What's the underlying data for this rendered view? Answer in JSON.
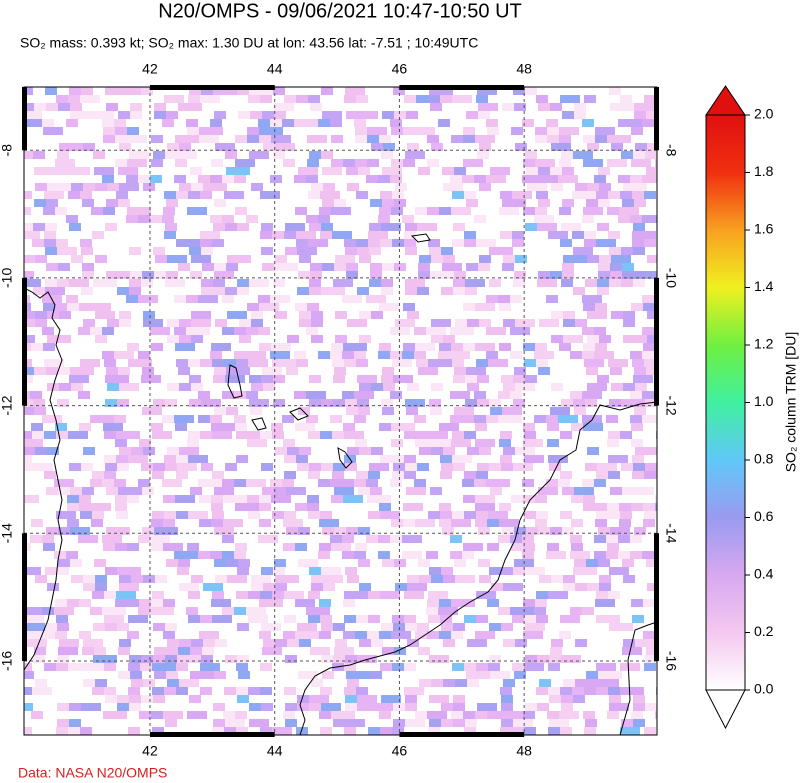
{
  "map": {
    "title": "N20/OMPS - 09/06/2021 10:47-10:50 UT",
    "subtitle": "SO₂ mass: 0.393 kt; SO₂ max: 1.30 DU at lon: 43.56 lat: -7.51 ; 10:49UTC",
    "xlim": [
      39.98,
      50.13
    ],
    "ylim": [
      -17.16,
      -7.01
    ],
    "xticks": [
      42,
      44,
      46,
      48
    ],
    "yticks": [
      -8,
      -10,
      -12,
      -14,
      -16
    ],
    "footer": "Data: NASA N20/OMPS"
  },
  "colorbar": {
    "label": "SO₂ column TRM [DU]",
    "lim": [
      0,
      2
    ],
    "colors": [
      "#ffffff",
      "#f4c8f0",
      "#d8a8f0",
      "#9a9af0",
      "#60c8f8",
      "#40f0a0",
      "#70f040",
      "#f0f020",
      "#f8a020",
      "#f03010",
      "#e01010"
    ],
    "ticks": [
      {
        "value": 0,
        "label": "0.0"
      },
      {
        "value": 0.2,
        "label": "0.2"
      },
      {
        "value": 0.4,
        "label": "0.4"
      },
      {
        "value": 0.6,
        "label": "0.6"
      },
      {
        "value": 0.8,
        "label": "0.8"
      },
      {
        "value": 1.0,
        "label": "1.0"
      },
      {
        "value": 1.2,
        "label": "1.2"
      },
      {
        "value": 1.4,
        "label": "1.4"
      },
      {
        "value": 1.6,
        "label": "1.6"
      },
      {
        "value": 1.8,
        "label": "1.8"
      },
      {
        "value": 2.0,
        "label": "2.0"
      }
    ]
  }
}
